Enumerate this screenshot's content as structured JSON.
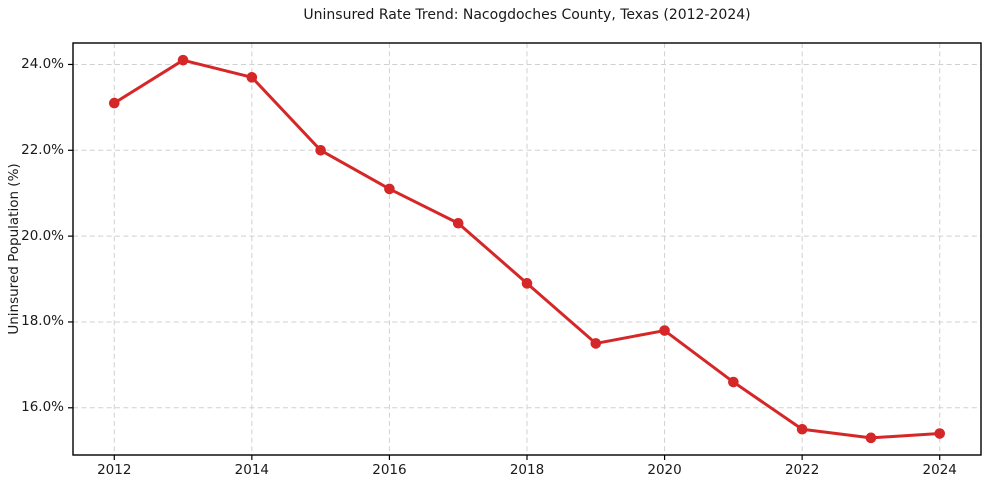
{
  "chart_data": {
    "type": "line",
    "title": "Uninsured Rate Trend: Nacogdoches County, Texas (2012-2024)",
    "xlabel": "",
    "ylabel": "Uninsured Population (%)",
    "x": [
      2012,
      2013,
      2014,
      2015,
      2016,
      2017,
      2018,
      2019,
      2020,
      2021,
      2022,
      2023,
      2024
    ],
    "values": [
      23.1,
      24.1,
      23.7,
      22.0,
      21.1,
      20.3,
      18.9,
      17.5,
      17.8,
      16.6,
      15.5,
      15.3,
      15.4
    ],
    "xticks": {
      "values": [
        2012,
        2014,
        2016,
        2018,
        2020,
        2022,
        2024
      ],
      "labels": [
        "2012",
        "2014",
        "2016",
        "2018",
        "2020",
        "2022",
        "2024"
      ]
    },
    "yticks": {
      "values": [
        16,
        18,
        20,
        22,
        24
      ],
      "labels": [
        "16.0%",
        "18.0%",
        "20.0%",
        "22.0%",
        "24.0%"
      ]
    },
    "xlim": [
      2011.4,
      2024.6
    ],
    "ylim": [
      14.9,
      24.5
    ],
    "line_color": "#d62728",
    "marker": "circle",
    "grid": {
      "on": true,
      "style": "dashed",
      "color": "#d0d0d0"
    },
    "spine_color": "#000000",
    "legend": "none"
  }
}
